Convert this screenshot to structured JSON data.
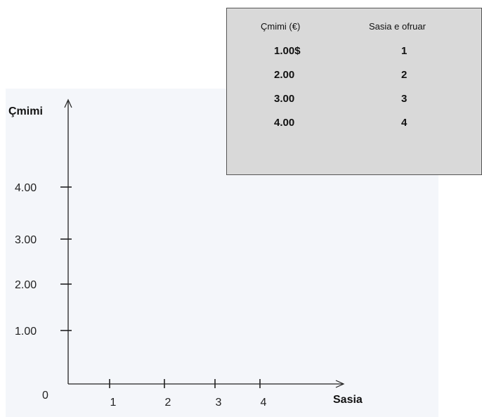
{
  "chart_data": {
    "type": "line",
    "title": "",
    "xlabel": "Sasia",
    "ylabel": "Çmimi",
    "origin_label": "0",
    "x_ticks": [
      "1",
      "2",
      "3",
      "4"
    ],
    "y_ticks": [
      "1.00",
      "2.00",
      "3.00",
      "4.00"
    ],
    "x": [],
    "y": [],
    "grid": false,
    "table": {
      "columns": [
        "Çmimi (€)",
        "Sasia e ofruar"
      ],
      "rows": [
        [
          "1.00$",
          "1"
        ],
        [
          "2.00",
          "2"
        ],
        [
          "3.00",
          "3"
        ],
        [
          "4.00",
          "4"
        ]
      ]
    }
  },
  "colors": {
    "axis": "#222222",
    "plot_background": "#f4f6fa",
    "table_background": "#d9d9d9"
  }
}
